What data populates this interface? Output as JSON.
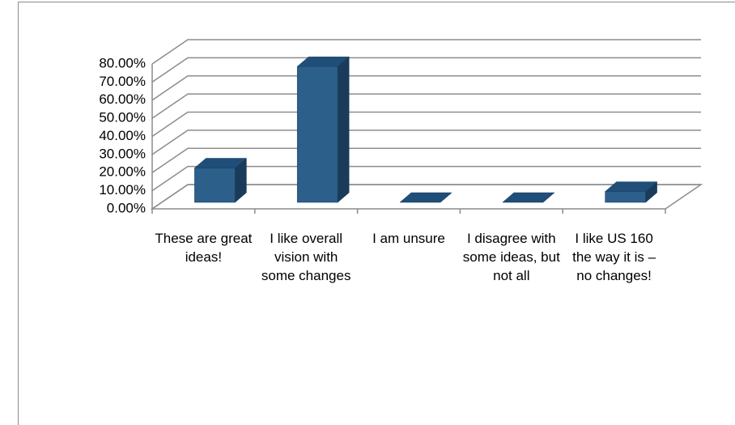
{
  "chart_data": {
    "type": "bar3d",
    "categories": [
      "These are great ideas!",
      "I like overall vision with some changes",
      "I am unsure",
      "I disagree with some ideas, but not all",
      "I like US 160 the way it is – no changes!"
    ],
    "values": [
      19,
      75,
      0,
      0,
      6
    ],
    "color": "#2c5f8a",
    "ylim": [
      0,
      80
    ],
    "yticks": [
      {
        "value": 0,
        "label": "0.00%"
      },
      {
        "value": 10,
        "label": "10.00%"
      },
      {
        "value": 20,
        "label": "20.00%"
      },
      {
        "value": 30,
        "label": "30.00%"
      },
      {
        "value": 40,
        "label": "40.00%"
      },
      {
        "value": 50,
        "label": "50.00%"
      },
      {
        "value": 60,
        "label": "60.00%"
      },
      {
        "value": 70,
        "label": "70.00%"
      },
      {
        "value": 80,
        "label": "80.00%"
      }
    ],
    "grid": true
  }
}
